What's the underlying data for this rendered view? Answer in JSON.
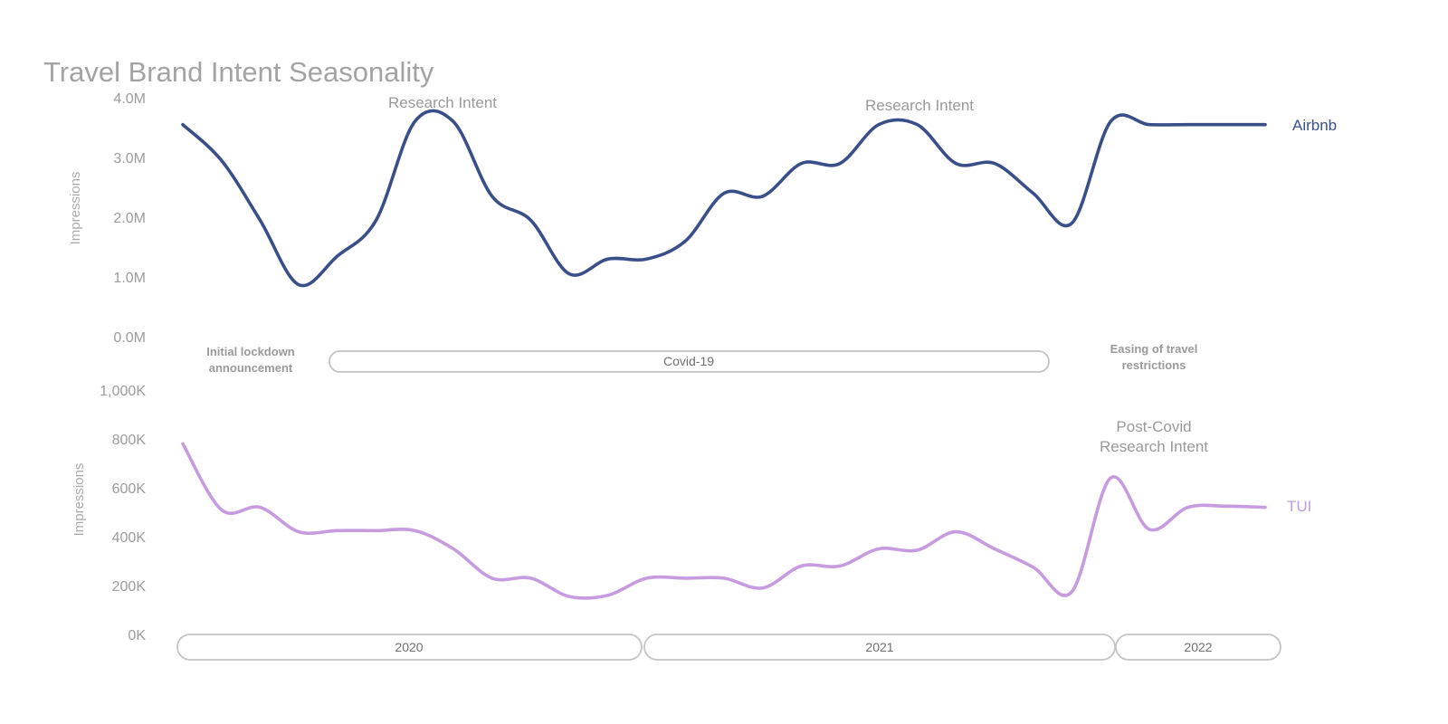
{
  "chart_data": [
    {
      "type": "line",
      "title": "Travel Brand Intent Seasonality",
      "ylabel": "Impressions",
      "ylim": [
        0,
        4000000
      ],
      "y_ticks": [
        "0.0M",
        "1.0M",
        "2.0M",
        "3.0M",
        "4.0M"
      ],
      "grid": false,
      "series": [
        {
          "name": "Airbnb",
          "color": "#3a4f8a",
          "x": [
            "2020-01",
            "2020-02",
            "2020-03",
            "2020-04",
            "2020-05",
            "2020-06",
            "2020-07",
            "2020-08",
            "2020-09",
            "2020-10",
            "2020-11",
            "2020-12",
            "2021-01",
            "2021-02",
            "2021-03",
            "2021-04",
            "2021-05",
            "2021-06",
            "2021-07",
            "2021-08",
            "2021-09",
            "2021-10",
            "2021-11",
            "2021-12",
            "2022-01",
            "2022-02",
            "2022-03",
            "2022-04",
            "2022-05"
          ],
          "values": [
            3550000,
            2950000,
            1950000,
            870000,
            1350000,
            1950000,
            3600000,
            3600000,
            2350000,
            1950000,
            1050000,
            1300000,
            1300000,
            1600000,
            2400000,
            2350000,
            2900000,
            2900000,
            3550000,
            3550000,
            2900000,
            2900000,
            2400000,
            1900000,
            3600000,
            3550000,
            3550000,
            3550000,
            3550000
          ]
        }
      ],
      "annotations": [
        {
          "text": "Research Intent",
          "x": "2020-07"
        },
        {
          "text": "Research Intent",
          "x": "2021-08"
        }
      ]
    },
    {
      "type": "line",
      "ylabel": "Impressions",
      "ylim": [
        0,
        1000000
      ],
      "y_ticks": [
        "0K",
        "200K",
        "400K",
        "600K",
        "800K",
        "1,000K"
      ],
      "grid": false,
      "series": [
        {
          "name": "TUI",
          "color": "#c69be0",
          "x": [
            "2020-01",
            "2020-02",
            "2020-03",
            "2020-04",
            "2020-05",
            "2020-06",
            "2020-07",
            "2020-08",
            "2020-09",
            "2020-10",
            "2020-11",
            "2020-12",
            "2021-01",
            "2021-02",
            "2021-03",
            "2021-04",
            "2021-05",
            "2021-06",
            "2021-07",
            "2021-08",
            "2021-09",
            "2021-10",
            "2021-11",
            "2021-12",
            "2022-01",
            "2022-02",
            "2022-03",
            "2022-04",
            "2022-05"
          ],
          "values": [
            780000,
            510000,
            520000,
            420000,
            425000,
            425000,
            425000,
            350000,
            230000,
            230000,
            155000,
            160000,
            230000,
            230000,
            230000,
            190000,
            280000,
            280000,
            350000,
            345000,
            420000,
            350000,
            275000,
            175000,
            640000,
            430000,
            520000,
            525000,
            520000
          ]
        }
      ],
      "annotations": [
        {
          "text": "Post-Covid",
          "x": "2022-01"
        },
        {
          "text": "Research Intent",
          "x": "2022-01"
        }
      ]
    }
  ],
  "events": {
    "lockdown_line1": "Initial lockdown",
    "lockdown_line2": "announcement",
    "covid": "Covid-19",
    "easing_line1": "Easing of travel",
    "easing_line2": "restrictions"
  },
  "years": [
    "2020",
    "2021",
    "2022"
  ]
}
